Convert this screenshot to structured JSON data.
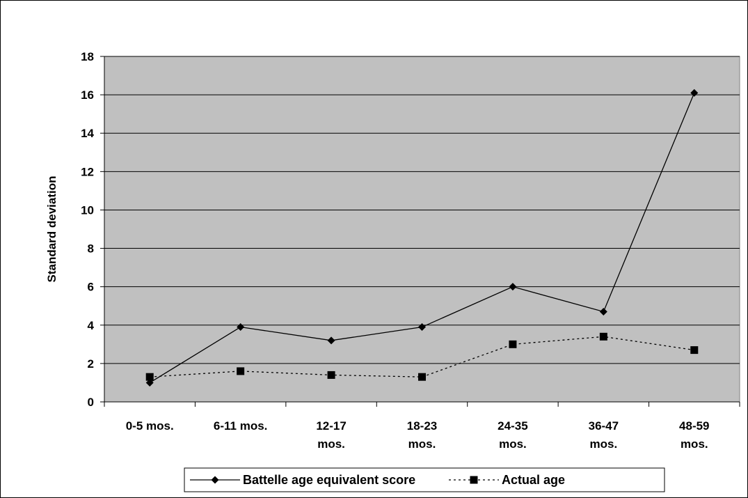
{
  "chart_data": {
    "type": "line",
    "title": "",
    "xlabel": "",
    "ylabel": "Standard deviation",
    "ylim": [
      0,
      18
    ],
    "yticks": [
      0,
      2,
      4,
      6,
      8,
      10,
      12,
      14,
      16,
      18
    ],
    "grid": true,
    "legend_position": "bottom",
    "categories": [
      [
        "0-5 mos."
      ],
      [
        "6-11 mos."
      ],
      [
        "12-17",
        "mos."
      ],
      [
        "18-23",
        "mos."
      ],
      [
        "24-35",
        "mos."
      ],
      [
        "36-47",
        "mos."
      ],
      [
        "48-59",
        "mos."
      ]
    ],
    "series": [
      {
        "name": "Battelle age equivalent score",
        "values": [
          1.0,
          3.9,
          3.2,
          3.9,
          6.0,
          4.7,
          16.1
        ],
        "marker": "diamond",
        "line_style": "solid",
        "color": "#000000"
      },
      {
        "name": "Actual age",
        "values": [
          1.3,
          1.6,
          1.4,
          1.3,
          3.0,
          3.4,
          2.7
        ],
        "marker": "square",
        "line_style": "dotted",
        "color": "#000000"
      }
    ],
    "colors": {
      "plot_background": "#c0c0c0",
      "gridline": "#000000",
      "frame": "#000000"
    }
  }
}
